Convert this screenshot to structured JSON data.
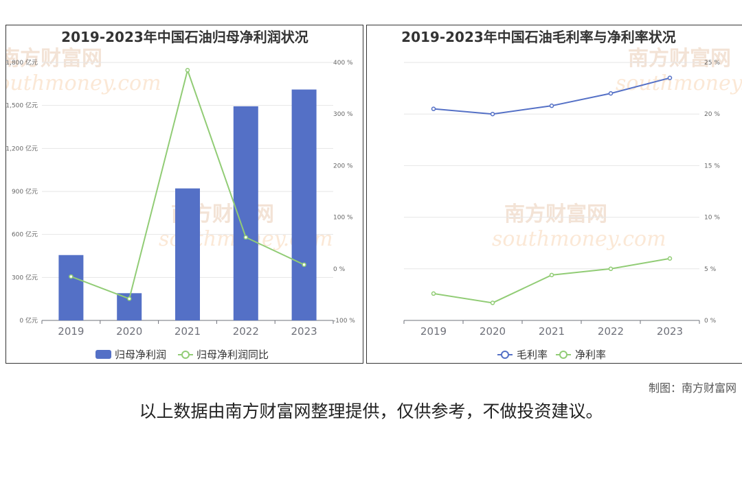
{
  "watermark": {
    "cn": "南方财富网",
    "en": "southmoney.com"
  },
  "colors": {
    "bar": "#5470c6",
    "line_green": "#91cc75",
    "line_blue": "#5470c6",
    "axis_text": "#666666",
    "grid": "#e6e6e6"
  },
  "credit": "制图：南方财富网",
  "disclaimer": "以上数据由南方财富网整理提供，仅供参考，不做投资建议。",
  "chart_data": [
    {
      "type": "bar",
      "title": "2019-2023年中国石油归母净利润状况",
      "categories": [
        "2019",
        "2020",
        "2021",
        "2022",
        "2023"
      ],
      "series": [
        {
          "name": "归母净利润",
          "type": "bar",
          "axis": "left",
          "values": [
            456,
            190,
            921,
            1494,
            1611
          ]
        },
        {
          "name": "归母净利润同比",
          "type": "line",
          "axis": "right",
          "values": [
            -15,
            -58,
            385,
            61,
            8
          ]
        }
      ],
      "y_left": {
        "ticks": [
          "0 亿元",
          "300 亿元",
          "600 亿元",
          "900 亿元",
          "1,200 亿元",
          "1,500 亿元",
          "1,800 亿元"
        ],
        "range": [
          0,
          1800
        ]
      },
      "y_right": {
        "ticks": [
          "-100 %",
          "0 %",
          "100 %",
          "200 %",
          "300 %",
          "400 %"
        ],
        "range": [
          -100,
          400
        ]
      },
      "legend": "bottom",
      "grid": true
    },
    {
      "type": "line",
      "title": "2019-2023年中国石油毛利率与净利率状况",
      "categories": [
        "2019",
        "2020",
        "2021",
        "2022",
        "2023"
      ],
      "series": [
        {
          "name": "毛利率",
          "values": [
            20.5,
            20.0,
            20.8,
            22.0,
            23.5
          ]
        },
        {
          "name": "净利率",
          "values": [
            2.6,
            1.7,
            4.4,
            5.0,
            6.0
          ]
        }
      ],
      "y_right": {
        "ticks": [
          "0 %",
          "5 %",
          "10 %",
          "15 %",
          "20 %",
          "25 %"
        ],
        "range": [
          0,
          25
        ]
      },
      "legend": "bottom",
      "grid": true
    }
  ]
}
